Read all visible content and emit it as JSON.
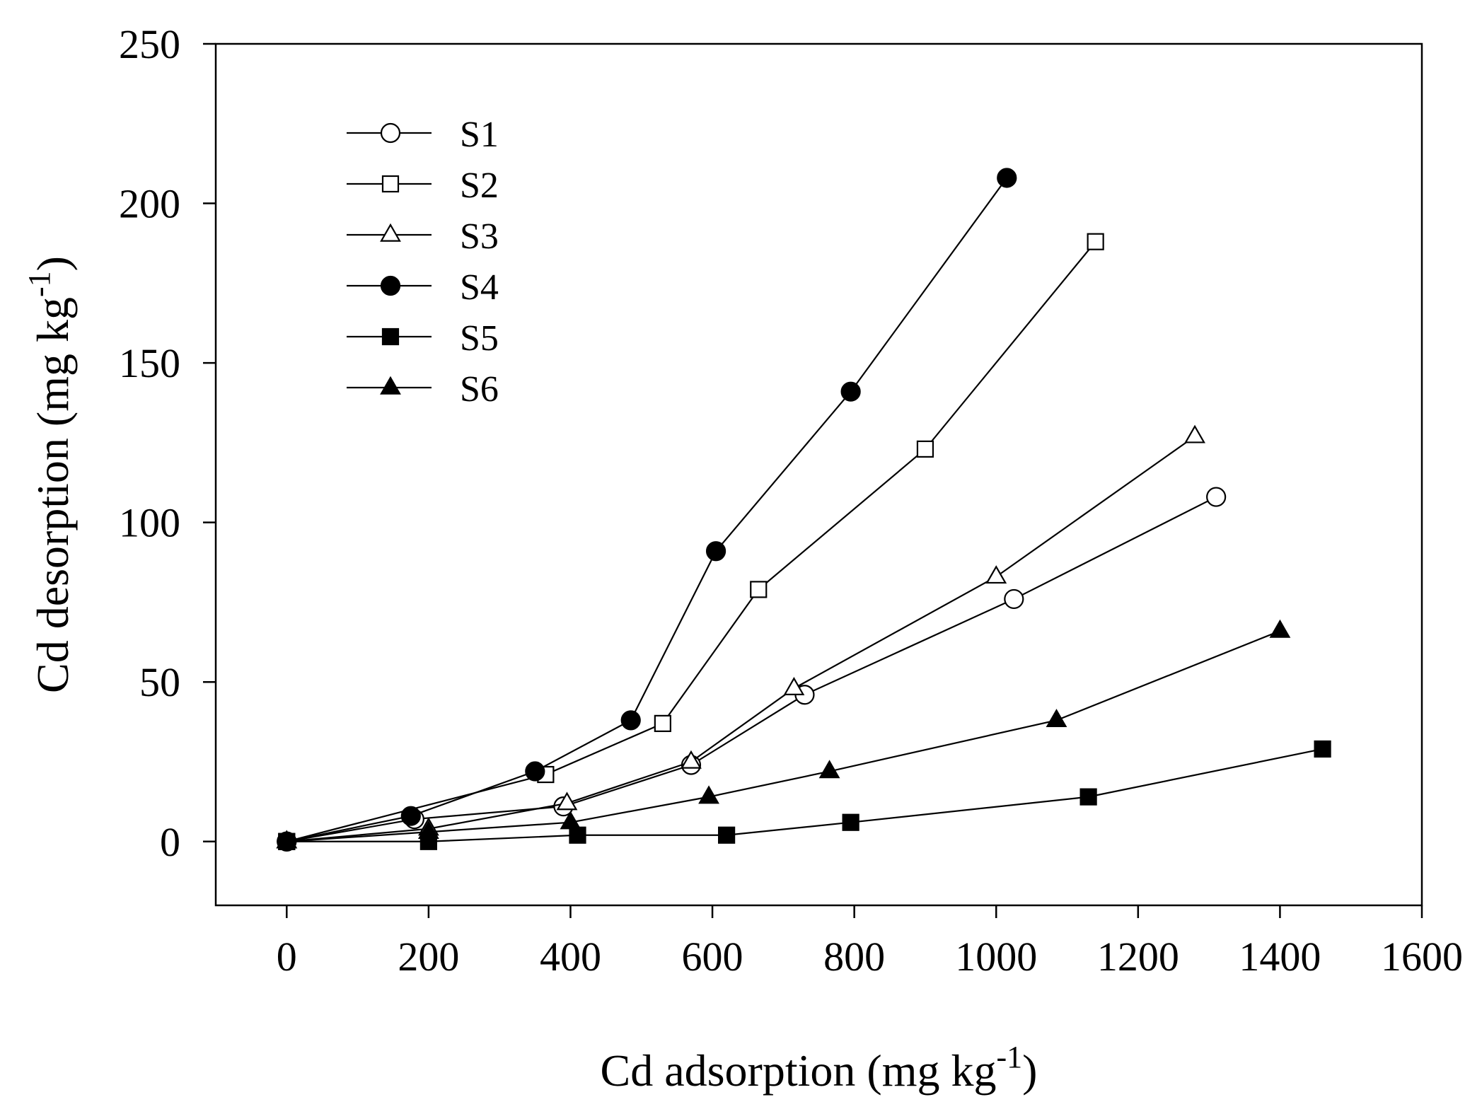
{
  "chart_data": {
    "type": "line",
    "title": "",
    "xlabel": {
      "main": "Cd adsorption (mg kg",
      "sup": "-1",
      "close": ")"
    },
    "ylabel": {
      "main": "Cd desorption (mg kg",
      "sup": "-1",
      "close": ")"
    },
    "xlim": [
      -100,
      1600
    ],
    "ylim": [
      -20,
      250
    ],
    "xticks": [
      0,
      200,
      400,
      600,
      800,
      1000,
      1200,
      1400,
      1600
    ],
    "yticks": [
      0,
      50,
      100,
      150,
      200,
      250
    ],
    "grid": false,
    "legend_position": "top-left",
    "series": [
      {
        "name": "S1",
        "marker": "circle",
        "filled": false,
        "x": [
          0,
          180,
          390,
          570,
          730,
          1025,
          1310
        ],
        "y": [
          0,
          7,
          11,
          24,
          46,
          76,
          108
        ]
      },
      {
        "name": "S2",
        "marker": "square",
        "filled": false,
        "x": [
          0,
          365,
          530,
          665,
          900,
          1140
        ],
        "y": [
          0,
          21,
          37,
          79,
          123,
          188
        ]
      },
      {
        "name": "S3",
        "marker": "triangle",
        "filled": false,
        "x": [
          0,
          200,
          395,
          570,
          715,
          1000,
          1280
        ],
        "y": [
          0,
          4,
          12,
          25,
          48,
          83,
          127
        ]
      },
      {
        "name": "S4",
        "marker": "circle",
        "filled": true,
        "x": [
          0,
          175,
          350,
          485,
          605,
          795,
          1015
        ],
        "y": [
          0,
          8,
          22,
          38,
          91,
          141,
          208
        ]
      },
      {
        "name": "S5",
        "marker": "square",
        "filled": true,
        "x": [
          0,
          200,
          410,
          620,
          795,
          1130,
          1460
        ],
        "y": [
          0,
          0,
          2,
          2,
          6,
          14,
          29
        ]
      },
      {
        "name": "S6",
        "marker": "triangle",
        "filled": true,
        "x": [
          0,
          200,
          400,
          595,
          765,
          1085,
          1400
        ],
        "y": [
          0,
          3,
          6,
          14,
          22,
          38,
          66
        ]
      }
    ]
  }
}
